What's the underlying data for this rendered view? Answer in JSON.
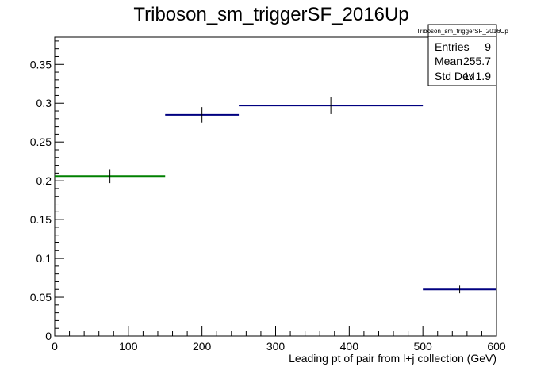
{
  "chart_data": {
    "type": "histogram",
    "title": "Triboson_sm_triggerSF_2016Up",
    "xlabel": "Leading pt of pair from l+j collection (GeV)",
    "ylabel": "",
    "xlim": [
      0,
      600
    ],
    "ylim": [
      0,
      0.385
    ],
    "x_ticks": [
      0,
      100,
      200,
      300,
      400,
      500,
      600
    ],
    "x_tick_labels": [
      "0",
      "100",
      "200",
      "300",
      "400",
      "500",
      "600"
    ],
    "y_ticks": [
      0,
      0.05,
      0.1,
      0.15,
      0.2,
      0.25,
      0.3,
      0.35
    ],
    "y_tick_labels": [
      "0",
      "0.05",
      "0.1",
      "0.15",
      "0.2",
      "0.25",
      "0.3",
      "0.35"
    ],
    "grid": false,
    "bins": [
      {
        "x_low": 0,
        "x_high": 150,
        "value": 0.206,
        "error": 0.009,
        "color": "#008000"
      },
      {
        "x_low": 150,
        "x_high": 250,
        "value": 0.285,
        "error": 0.01,
        "color": "#000080"
      },
      {
        "x_low": 250,
        "x_high": 500,
        "value": 0.297,
        "error": 0.011,
        "color": "#000080"
      },
      {
        "x_low": 500,
        "x_high": 600,
        "value": 0.06,
        "error": 0.005,
        "color": "#000080"
      }
    ],
    "stats_box": {
      "placement": "top-right",
      "title": "Triboson_sm_triggerSF_2016Up",
      "rows": [
        {
          "label": "Entries",
          "value": "9"
        },
        {
          "label": "Mean",
          "value": "255.7"
        },
        {
          "label": "Std Dev",
          "value": "141.9"
        }
      ]
    }
  }
}
